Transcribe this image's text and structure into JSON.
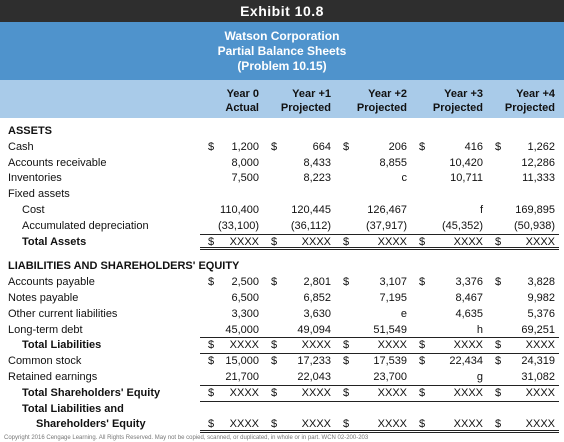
{
  "header": {
    "exhibit": "Exhibit 10.8",
    "title": [
      "Watson Corporation",
      "Partial Balance Sheets",
      "(Problem 10.15)"
    ]
  },
  "table": {
    "columns": [
      [
        "Year 0",
        "Actual"
      ],
      [
        "Year +1",
        "Projected"
      ],
      [
        "Year +2",
        "Projected"
      ],
      [
        "Year +3",
        "Projected"
      ],
      [
        "Year +4",
        "Projected"
      ]
    ],
    "rows": [
      {
        "label": "ASSETS",
        "bold": true
      },
      {
        "label": "Cash",
        "cells": [
          {
            "cur": "$",
            "val": "1,200"
          },
          {
            "cur": "$",
            "val": "664"
          },
          {
            "cur": "$",
            "val": "206"
          },
          {
            "cur": "$",
            "val": "416"
          },
          {
            "cur": "$",
            "val": "1,262"
          }
        ]
      },
      {
        "label": "Accounts receivable",
        "cells": [
          "8,000",
          "8,433",
          "8,855",
          "10,420",
          "12,286"
        ]
      },
      {
        "label": "Inventories",
        "cells": [
          "7,500",
          "8,223",
          "c",
          "10,711",
          "11,333"
        ]
      },
      {
        "label": "Fixed assets"
      },
      {
        "label": "Cost",
        "indent": 1,
        "cells": [
          "110,400",
          "120,445",
          "126,467",
          "f",
          "169,895"
        ]
      },
      {
        "label": "Accumulated depreciation",
        "indent": 1,
        "cells": [
          "(33,100)",
          "(36,112)",
          "(37,917)",
          "(45,352)",
          "(50,938)"
        ]
      },
      {
        "label": "Total Assets",
        "indent": 1,
        "bold": true,
        "cells": [
          {
            "cur": "$",
            "val": "XXXX"
          },
          {
            "cur": "$",
            "val": "XXXX"
          },
          {
            "cur": "$",
            "val": "XXXX"
          },
          {
            "cur": "$",
            "val": "XXXX"
          },
          {
            "cur": "$",
            "val": "XXXX"
          }
        ]
      },
      {
        "label": "LIABILITIES AND SHAREHOLDERS' EQUITY",
        "bold": true
      },
      {
        "label": "Accounts payable",
        "cells": [
          {
            "cur": "$",
            "val": "2,500"
          },
          {
            "cur": "$",
            "val": "2,801"
          },
          {
            "cur": "$",
            "val": "3,107"
          },
          {
            "cur": "$",
            "val": "3,376"
          },
          {
            "cur": "$",
            "val": "3,828"
          }
        ]
      },
      {
        "label": "Notes payable",
        "cells": [
          "6,500",
          "6,852",
          "7,195",
          "8,467",
          "9,982"
        ]
      },
      {
        "label": "Other current liabilities",
        "cells": [
          "3,300",
          "3,630",
          "e",
          "4,635",
          "5,376"
        ]
      },
      {
        "label": "Long-term debt",
        "cells": [
          "45,000",
          "49,094",
          "51,549",
          "h",
          "69,251"
        ]
      },
      {
        "label": "Total Liabilities",
        "indent": 1,
        "bold": true,
        "cells": [
          {
            "cur": "$",
            "val": "XXXX"
          },
          {
            "cur": "$",
            "val": "XXXX"
          },
          {
            "cur": "$",
            "val": "XXXX"
          },
          {
            "cur": "$",
            "val": "XXXX"
          },
          {
            "cur": "$",
            "val": "XXXX"
          }
        ]
      },
      {
        "label": "Common stock",
        "cells": [
          {
            "cur": "$",
            "val": "15,000"
          },
          {
            "cur": "$",
            "val": "17,233"
          },
          {
            "cur": "$",
            "val": "17,539"
          },
          {
            "cur": "$",
            "val": "22,434"
          },
          {
            "cur": "$",
            "val": "24,319"
          }
        ]
      },
      {
        "label": "Retained earnings",
        "cells": [
          "21,700",
          "22,043",
          "23,700",
          "g",
          "31,082"
        ]
      },
      {
        "label": "Total Shareholders' Equity",
        "indent": 1,
        "bold": true,
        "cells": [
          {
            "cur": "$",
            "val": "XXXX"
          },
          {
            "cur": "$",
            "val": "XXXX"
          },
          {
            "cur": "$",
            "val": "XXXX"
          },
          {
            "cur": "$",
            "val": "XXXX"
          },
          {
            "cur": "$",
            "val": "XXXX"
          }
        ]
      },
      {
        "label": "Total Liabilities and",
        "indent": 1,
        "bold": true
      },
      {
        "label": "Shareholders' Equity",
        "indent": 2,
        "bold": true,
        "cells": [
          {
            "cur": "$",
            "val": "XXXX"
          },
          {
            "cur": "$",
            "val": "XXXX"
          },
          {
            "cur": "$",
            "val": "XXXX"
          },
          {
            "cur": "$",
            "val": "XXXX"
          },
          {
            "cur": "$",
            "val": "XXXX"
          }
        ]
      }
    ]
  },
  "footer": "Copyright 2016 Cengage Learning. All Rights Reserved. May not be copied, scanned, or duplicated, in whole or in part. WCN 02-200-203"
}
